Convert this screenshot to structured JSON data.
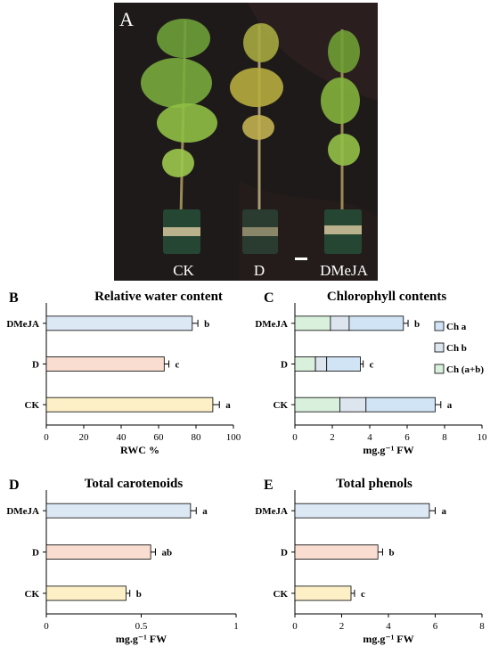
{
  "photo": {
    "panel_letter": "A",
    "plant_labels": [
      "CK",
      "D",
      "DMeJA"
    ],
    "background_color": "#1e1a19"
  },
  "colors": {
    "CK": "#fdf0c6",
    "D": "#f9ddd1",
    "DMeJA": "#dde8f5",
    "Ch a": "#d0e4f6",
    "Ch b": "#dde5ef",
    "Ch (a+b)": "#d9f0dd"
  },
  "chart_data": [
    {
      "panel": "B",
      "type": "bar",
      "orientation": "horizontal",
      "title": "Relative water content",
      "xlabel": "RWC %",
      "categories": [
        "DMeJA",
        "D",
        "CK"
      ],
      "values": [
        78,
        63,
        89
      ],
      "errors": [
        3,
        2.5,
        3.5
      ],
      "significance": [
        "b",
        "c",
        "a"
      ],
      "xlim": [
        0,
        100
      ],
      "xticks": [
        "0",
        "20",
        "40",
        "60",
        "80",
        "100"
      ]
    },
    {
      "panel": "C",
      "type": "bar",
      "orientation": "horizontal",
      "stacked": true,
      "title": "Chlorophyll contents",
      "xlabel": "mg.g⁻¹ FW",
      "categories": [
        "DMeJA",
        "D",
        "CK"
      ],
      "series": [
        {
          "name": "Ch (a+b)",
          "values": [
            1.9,
            1.1,
            2.4
          ],
          "errors": [
            0.15,
            0.12,
            0.2
          ]
        },
        {
          "name": "Ch b",
          "values": [
            1.0,
            0.6,
            1.4
          ],
          "errors": [
            0.1,
            0.08,
            0.12
          ]
        },
        {
          "name": "Ch a",
          "values": [
            2.9,
            1.8,
            3.7
          ],
          "errors": [
            0.25,
            0.15,
            0.3
          ]
        }
      ],
      "legend": [
        "Ch a",
        "Ch b",
        "Ch (a+b)"
      ],
      "legend_position": "right",
      "significance": [
        "b",
        "c",
        "a"
      ],
      "xlim": [
        0,
        10
      ],
      "xticks": [
        "0",
        "2",
        "4",
        "6",
        "8",
        "10"
      ]
    },
    {
      "panel": "D",
      "type": "bar",
      "orientation": "horizontal",
      "title": "Total carotenoids",
      "xlabel": "mg.g⁻¹ FW",
      "categories": [
        "DMeJA",
        "D",
        "CK"
      ],
      "values": [
        0.76,
        0.55,
        0.42
      ],
      "errors": [
        0.03,
        0.025,
        0.02
      ],
      "significance": [
        "a",
        "ab",
        "b"
      ],
      "xlim": [
        0,
        1
      ],
      "xticks": [
        "0",
        "0.5",
        "1"
      ]
    },
    {
      "panel": "E",
      "type": "bar",
      "orientation": "horizontal",
      "title": "Total phenols",
      "xlabel": "mg.g⁻¹ FW",
      "categories": [
        "DMeJA",
        "D",
        "CK"
      ],
      "values": [
        5.75,
        3.55,
        2.4
      ],
      "errors": [
        0.25,
        0.2,
        0.15
      ],
      "significance": [
        "a",
        "b",
        "c"
      ],
      "xlim": [
        0,
        8
      ],
      "xticks": [
        "0",
        "2",
        "4",
        "6",
        "8"
      ]
    }
  ]
}
